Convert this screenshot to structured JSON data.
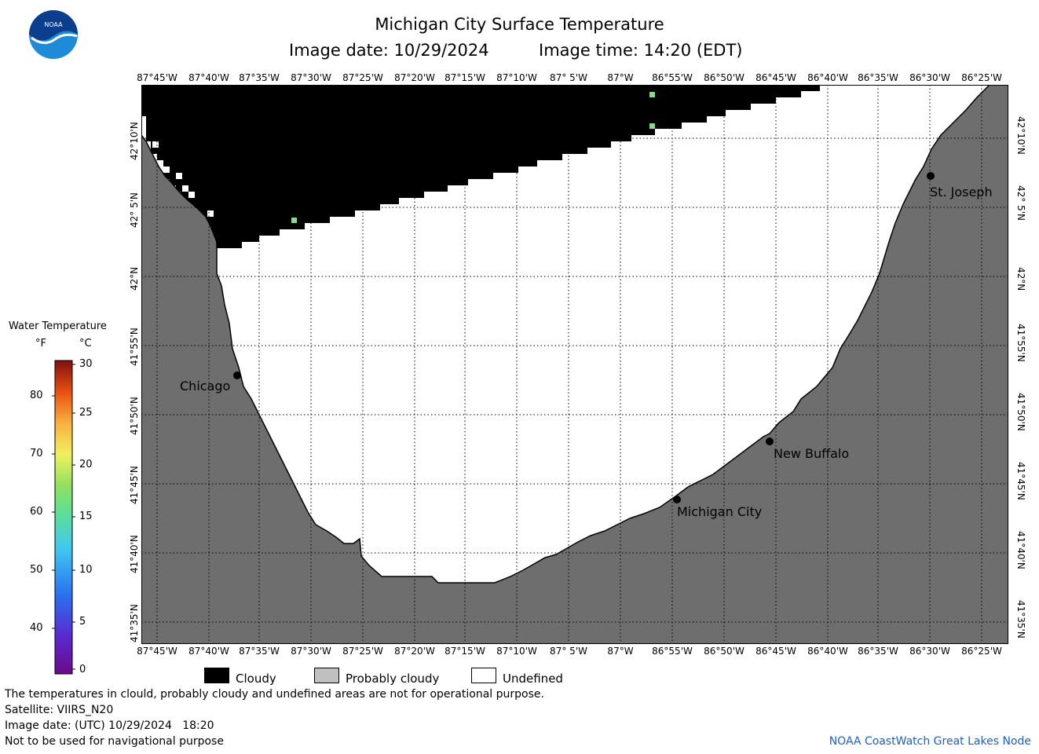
{
  "header": {
    "title": "Michigan City Surface Temperature",
    "image_date_label": "Image date: 10/29/2024",
    "image_time_label": "Image time: 14:20 (EDT)",
    "logo_text": "NOAA"
  },
  "longitude_labels": [
    "87°45'W",
    "87°40'W",
    "87°35'W",
    "87°30'W",
    "87°25'W",
    "87°20'W",
    "87°15'W",
    "87°10'W",
    "87° 5'W",
    "87°W",
    "86°55'W",
    "86°50'W",
    "86°45'W",
    "86°40'W",
    "86°35'W",
    "86°30'W",
    "86°25'W"
  ],
  "latitude_labels": [
    "42°10'N",
    "42° 5'N",
    "42°N",
    "41°55'N",
    "41°50'N",
    "41°45'N",
    "41°40'N",
    "41°35'N"
  ],
  "cities": [
    {
      "name": "Chicago"
    },
    {
      "name": "St. Joseph"
    },
    {
      "name": "New Buffalo"
    },
    {
      "name": "Michigan City"
    }
  ],
  "color_legend": {
    "title": "Water Temperature",
    "unit_f": "°F",
    "unit_c": "°C",
    "f_ticks": [
      "80",
      "70",
      "60",
      "50",
      "40"
    ],
    "c_ticks": [
      "30",
      "25",
      "20",
      "15",
      "10",
      "5",
      "0"
    ]
  },
  "category_legend": [
    {
      "label": "Cloudy",
      "color": "#000000"
    },
    {
      "label": "Probably cloudy",
      "color": "#c0c0c0"
    },
    {
      "label": "Undefined",
      "color": "#ffffff"
    }
  ],
  "footer": {
    "line1": "The temperatures in clould, probably cloudy and undefined areas are not for operational purpose.",
    "line2": "Satellite: VIIRS_N20",
    "line3": "Image date: (UTC) 10/29/2024   18:20",
    "line4": "Not to be used for navigational purpose",
    "credit": "NOAA CoastWatch Great Lakes Node"
  },
  "colors": {
    "land": "#6e6e6e",
    "cloud": "#000000",
    "water_undefined": "#ffffff",
    "credit": "#2060c0"
  }
}
